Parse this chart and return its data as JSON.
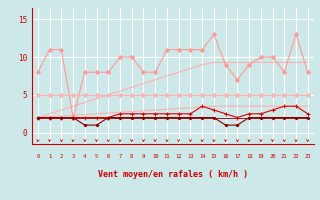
{
  "x": [
    0,
    1,
    2,
    3,
    4,
    5,
    6,
    7,
    8,
    9,
    10,
    11,
    12,
    13,
    14,
    15,
    16,
    17,
    18,
    19,
    20,
    21,
    22,
    23
  ],
  "line_rafales": [
    8,
    11,
    11,
    2,
    8,
    8,
    8,
    10,
    10,
    8,
    8,
    11,
    11,
    11,
    11,
    13,
    9,
    7,
    9,
    10,
    10,
    8,
    13,
    8
  ],
  "line_flat5": [
    5,
    5,
    5,
    5,
    5,
    5,
    5,
    5,
    5,
    5,
    5,
    5,
    5,
    5,
    5,
    5,
    5,
    5,
    5,
    5,
    5,
    5,
    5,
    5
  ],
  "line_trend_hi": [
    2.0,
    2.5,
    3.0,
    3.5,
    4.0,
    4.5,
    5.0,
    5.5,
    6.0,
    6.5,
    7.0,
    7.5,
    8.0,
    8.5,
    9.0,
    9.3,
    9.3,
    9.3,
    9.3,
    9.3,
    9.3,
    9.3,
    9.3,
    9.3
  ],
  "line_trend_lo": [
    2.0,
    2.1,
    2.2,
    2.3,
    2.4,
    2.5,
    2.6,
    2.7,
    2.8,
    2.9,
    3.0,
    3.1,
    3.2,
    3.3,
    3.4,
    3.5,
    3.5,
    3.5,
    3.5,
    3.5,
    3.5,
    3.5,
    3.5,
    3.5
  ],
  "line_moyen": [
    2,
    2,
    2,
    2,
    2,
    2,
    2,
    2.5,
    2.5,
    2.5,
    2.5,
    2.5,
    2.5,
    2.5,
    3.5,
    3.0,
    2.5,
    2.0,
    2.5,
    2.5,
    3.0,
    3.5,
    3.5,
    2.5
  ],
  "line_dark1": [
    2,
    2,
    2,
    2,
    1,
    1,
    2,
    2,
    2,
    2,
    2,
    2,
    2,
    2,
    2,
    2,
    1,
    1,
    2,
    2,
    2,
    2,
    2,
    2
  ],
  "line_dark2": [
    2,
    2,
    2,
    2,
    2,
    2,
    2,
    2,
    2,
    2,
    2,
    2,
    2,
    2,
    2,
    2,
    2,
    2,
    2,
    2,
    2,
    2,
    2,
    2
  ],
  "background_color": "#cde8e8",
  "grid_color": "#ffffff",
  "color_light_pink": "#ff9999",
  "color_mid_pink": "#ffb0b0",
  "color_red": "#dd0000",
  "color_dark_red": "#880000",
  "xlabel": "Vent moyen/en rafales ( km/h )",
  "ylabel_ticks": [
    0,
    5,
    10,
    15
  ],
  "ylim": [
    -1.5,
    16.5
  ],
  "xlim": [
    -0.5,
    23.5
  ],
  "xlabel_color": "#cc0000",
  "tick_color": "#cc0000"
}
